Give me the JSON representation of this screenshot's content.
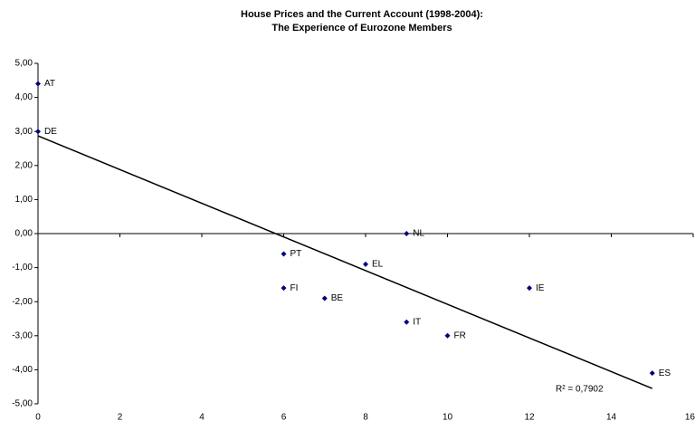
{
  "chart_data": {
    "type": "scatter",
    "title": "House Prices and the Current Account (1998-2004):",
    "subtitle": "The Experience of Eurozone Members",
    "labels": [
      "AT",
      "DE",
      "NL",
      "PT",
      "EL",
      "FI",
      "BE",
      "IE",
      "IT",
      "FR",
      "ES"
    ],
    "x": [
      0,
      0,
      9,
      6,
      8,
      6,
      7,
      12,
      9,
      10,
      15
    ],
    "values": [
      4.4,
      3.0,
      0.0,
      -0.6,
      -0.9,
      -1.6,
      -1.9,
      -1.6,
      -2.6,
      -3.0,
      -4.1
    ],
    "color": "#000080",
    "trendline": {
      "x": [
        0,
        15
      ],
      "y": [
        2.87,
        -4.55
      ],
      "color": "#000000",
      "annotation": "R² = 0,7902"
    },
    "xlim": [
      0,
      16
    ],
    "xticks": [
      0,
      2,
      4,
      6,
      8,
      10,
      12,
      14,
      16
    ],
    "ylim": [
      -5,
      5
    ],
    "yticks": [
      {
        "value": -5,
        "label": "-5,00"
      },
      {
        "value": -4,
        "label": "-4,00"
      },
      {
        "value": -3,
        "label": "-3,00"
      },
      {
        "value": -2,
        "label": "-2,00"
      },
      {
        "value": -1,
        "label": "-1,00"
      },
      {
        "value": 0,
        "label": "0,00"
      },
      {
        "value": 1,
        "label": "1,00"
      },
      {
        "value": 2,
        "label": "2,00"
      },
      {
        "value": 3,
        "label": "3,00"
      },
      {
        "value": 4,
        "label": "4,00"
      },
      {
        "value": 5,
        "label": "5,00"
      }
    ],
    "grid": false
  }
}
